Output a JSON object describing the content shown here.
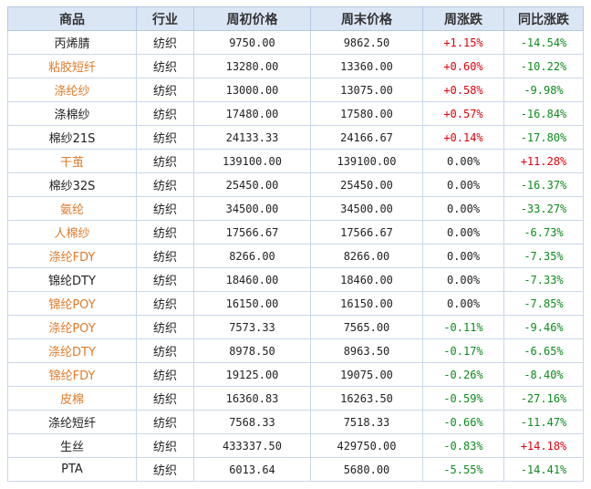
{
  "table": {
    "headers": [
      "商品",
      "行业",
      "周初价格",
      "周末价格",
      "周涨跌",
      "同比涨跌"
    ],
    "colors": {
      "link": "#e07b2a",
      "up": "#e0000c",
      "down": "#0f8a1f",
      "header_bg": "#dbe6f5"
    },
    "rows": [
      {
        "name": "丙烯腈",
        "link": false,
        "industry": "纺织",
        "open": "9750.00",
        "close": "9862.50",
        "week": "+1.15%",
        "week_dir": "pos",
        "yoy": "-14.54%",
        "yoy_dir": "neg"
      },
      {
        "name": "粘胶短纤",
        "link": true,
        "industry": "纺织",
        "open": "13280.00",
        "close": "13360.00",
        "week": "+0.60%",
        "week_dir": "pos",
        "yoy": "-10.22%",
        "yoy_dir": "neg"
      },
      {
        "name": "涤纶纱",
        "link": true,
        "industry": "纺织",
        "open": "13000.00",
        "close": "13075.00",
        "week": "+0.58%",
        "week_dir": "pos",
        "yoy": "-9.98%",
        "yoy_dir": "neg"
      },
      {
        "name": "涤棉纱",
        "link": false,
        "industry": "纺织",
        "open": "17480.00",
        "close": "17580.00",
        "week": "+0.57%",
        "week_dir": "pos",
        "yoy": "-16.84%",
        "yoy_dir": "neg"
      },
      {
        "name": "棉纱21S",
        "link": false,
        "industry": "纺织",
        "open": "24133.33",
        "close": "24166.67",
        "week": "+0.14%",
        "week_dir": "pos",
        "yoy": "-17.80%",
        "yoy_dir": "neg"
      },
      {
        "name": "干茧",
        "link": true,
        "industry": "纺织",
        "open": "139100.00",
        "close": "139100.00",
        "week": "0.00%",
        "week_dir": "zero",
        "yoy": "+11.28%",
        "yoy_dir": "pos"
      },
      {
        "name": "棉纱32S",
        "link": false,
        "industry": "纺织",
        "open": "25450.00",
        "close": "25450.00",
        "week": "0.00%",
        "week_dir": "zero",
        "yoy": "-16.37%",
        "yoy_dir": "neg"
      },
      {
        "name": "氨纶",
        "link": true,
        "industry": "纺织",
        "open": "34500.00",
        "close": "34500.00",
        "week": "0.00%",
        "week_dir": "zero",
        "yoy": "-33.27%",
        "yoy_dir": "neg"
      },
      {
        "name": "人棉纱",
        "link": true,
        "industry": "纺织",
        "open": "17566.67",
        "close": "17566.67",
        "week": "0.00%",
        "week_dir": "zero",
        "yoy": "-6.73%",
        "yoy_dir": "neg"
      },
      {
        "name": "涤纶FDY",
        "link": true,
        "industry": "纺织",
        "open": "8266.00",
        "close": "8266.00",
        "week": "0.00%",
        "week_dir": "zero",
        "yoy": "-7.35%",
        "yoy_dir": "neg"
      },
      {
        "name": "锦纶DTY",
        "link": false,
        "industry": "纺织",
        "open": "18460.00",
        "close": "18460.00",
        "week": "0.00%",
        "week_dir": "zero",
        "yoy": "-7.33%",
        "yoy_dir": "neg"
      },
      {
        "name": "锦纶POY",
        "link": true,
        "industry": "纺织",
        "open": "16150.00",
        "close": "16150.00",
        "week": "0.00%",
        "week_dir": "zero",
        "yoy": "-7.85%",
        "yoy_dir": "neg"
      },
      {
        "name": "涤纶POY",
        "link": true,
        "industry": "纺织",
        "open": "7573.33",
        "close": "7565.00",
        "week": "-0.11%",
        "week_dir": "neg",
        "yoy": "-9.46%",
        "yoy_dir": "neg"
      },
      {
        "name": "涤纶DTY",
        "link": true,
        "industry": "纺织",
        "open": "8978.50",
        "close": "8963.50",
        "week": "-0.17%",
        "week_dir": "neg",
        "yoy": "-6.65%",
        "yoy_dir": "neg"
      },
      {
        "name": "锦纶FDY",
        "link": true,
        "industry": "纺织",
        "open": "19125.00",
        "close": "19075.00",
        "week": "-0.26%",
        "week_dir": "neg",
        "yoy": "-8.40%",
        "yoy_dir": "neg"
      },
      {
        "name": "皮棉",
        "link": true,
        "industry": "纺织",
        "open": "16360.83",
        "close": "16263.50",
        "week": "-0.59%",
        "week_dir": "neg",
        "yoy": "-27.16%",
        "yoy_dir": "neg"
      },
      {
        "name": "涤纶短纤",
        "link": false,
        "industry": "纺织",
        "open": "7568.33",
        "close": "7518.33",
        "week": "-0.66%",
        "week_dir": "neg",
        "yoy": "-11.47%",
        "yoy_dir": "neg"
      },
      {
        "name": "生丝",
        "link": false,
        "industry": "纺织",
        "open": "433337.50",
        "close": "429750.00",
        "week": "-0.83%",
        "week_dir": "neg",
        "yoy": "+14.18%",
        "yoy_dir": "pos"
      },
      {
        "name": "PTA",
        "link": false,
        "industry": "纺织",
        "open": "6013.64",
        "close": "5680.00",
        "week": "-5.55%",
        "week_dir": "neg",
        "yoy": "-14.41%",
        "yoy_dir": "neg"
      }
    ]
  }
}
